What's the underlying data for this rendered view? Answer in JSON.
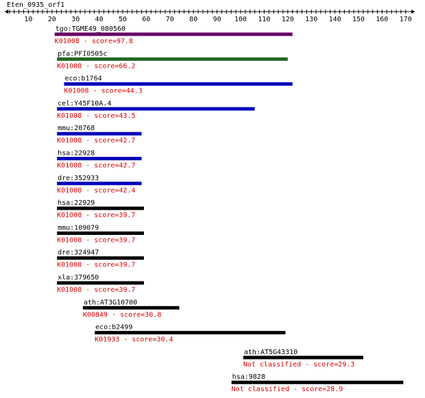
{
  "title": "Eten_0935_orf1",
  "axis": {
    "min": 0,
    "max": 173,
    "ticks": [
      10,
      20,
      30,
      40,
      50,
      60,
      70,
      80,
      90,
      100,
      110,
      120,
      130,
      140,
      150,
      160,
      170
    ]
  },
  "colors": {
    "text": "#000000",
    "subtitle": "#dd0000",
    "purple": "#660066",
    "green": "#226622",
    "blue": "#0000bb",
    "black": "#000000"
  },
  "hits": [
    {
      "name": "tgo:TGME49_080560",
      "ko": "K01008",
      "score": "97.8",
      "start": 22,
      "end": 122,
      "color": "purple"
    },
    {
      "name": "pfa:PFI0505c",
      "ko": "K01008",
      "score": "66.2",
      "start": 23,
      "end": 120,
      "color": "green"
    },
    {
      "name": "eco:b1764",
      "ko": "K01008",
      "score": "44.3",
      "start": 26,
      "end": 122,
      "color": "blue"
    },
    {
      "name": "cel:Y45F10A.4",
      "ko": "K01008",
      "score": "43.5",
      "start": 23,
      "end": 106,
      "color": "blue"
    },
    {
      "name": "mmu:20768",
      "ko": "K01008",
      "score": "42.7",
      "start": 23,
      "end": 58,
      "color": "blue"
    },
    {
      "name": "hsa:22928",
      "ko": "K01008",
      "score": "42.7",
      "start": 23,
      "end": 58,
      "color": "blue"
    },
    {
      "name": "dre:352933",
      "ko": "K01008",
      "score": "42.4",
      "start": 23,
      "end": 58,
      "color": "blue"
    },
    {
      "name": "hsa:22929",
      "ko": "K01008",
      "score": "39.7",
      "start": 23,
      "end": 59,
      "color": "black"
    },
    {
      "name": "mmu:109079",
      "ko": "K01008",
      "score": "39.7",
      "start": 23,
      "end": 59,
      "color": "black"
    },
    {
      "name": "dre:324947",
      "ko": "K01008",
      "score": "39.7",
      "start": 23,
      "end": 59,
      "color": "black"
    },
    {
      "name": "xla:379650",
      "ko": "K01008",
      "score": "39.7",
      "start": 23,
      "end": 59,
      "color": "black"
    },
    {
      "name": "ath:AT3G10700",
      "ko": "K00849",
      "score": "30.8",
      "start": 34,
      "end": 74,
      "color": "black"
    },
    {
      "name": "eco:b2499",
      "ko": "K01933",
      "score": "30.4",
      "start": 39,
      "end": 119,
      "color": "black"
    },
    {
      "name": "ath:AT5G43310",
      "ko": "Not classified",
      "score": "29.3",
      "start": 102,
      "end": 152,
      "color": "black"
    },
    {
      "name": "hsa:9828",
      "ko": "Not classified",
      "score": "28.9",
      "start": 97,
      "end": 169,
      "color": "black"
    }
  ],
  "score_label": "score="
}
